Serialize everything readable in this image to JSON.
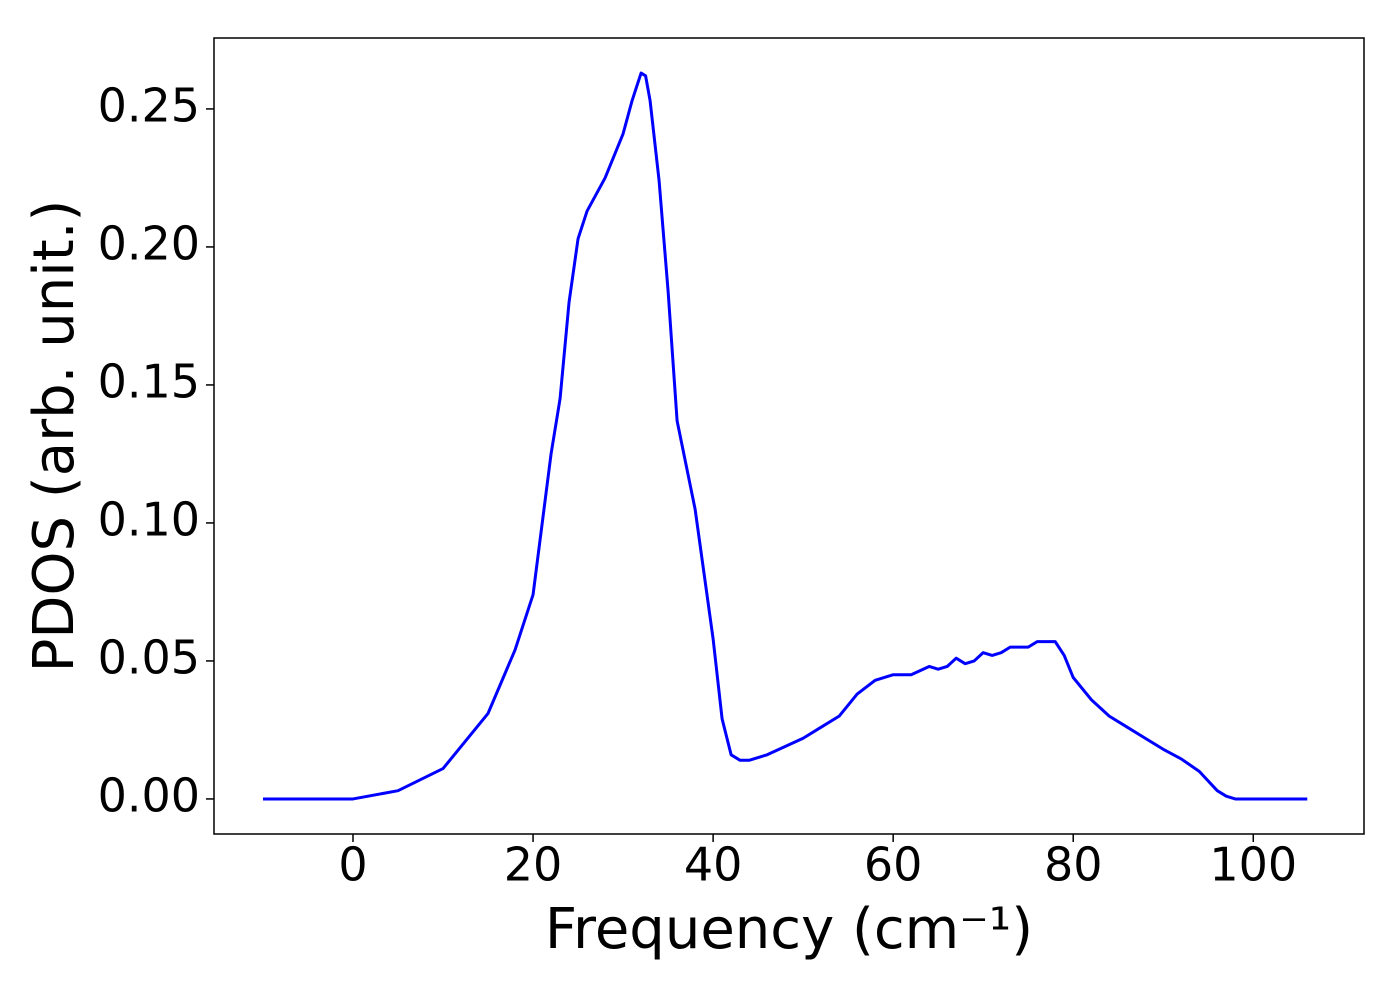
{
  "chart_data": {
    "type": "line",
    "xlabel": "Frequency (cm⁻¹)",
    "ylabel": "PDOS (arb. unit.)",
    "x": [
      -10,
      -5,
      0,
      5,
      10,
      15,
      18,
      20,
      22,
      23,
      24,
      25,
      26,
      28,
      30,
      31,
      32,
      32.5,
      33,
      34,
      35,
      36,
      38,
      40,
      41,
      42,
      43,
      44,
      46,
      48,
      50,
      52,
      54,
      56,
      58,
      60,
      62,
      64,
      65,
      66,
      67,
      68,
      69,
      70,
      71,
      72,
      73,
      75,
      76,
      78,
      79,
      80,
      82,
      84,
      86,
      88,
      90,
      92,
      94,
      96,
      97,
      98,
      100,
      103,
      106
    ],
    "series": [
      {
        "name": "PDOS",
        "color": "#0000ff",
        "values": [
          0,
          0,
          0,
          0.003,
          0.011,
          0.031,
          0.054,
          0.074,
          0.125,
          0.145,
          0.18,
          0.203,
          0.213,
          0.225,
          0.241,
          0.253,
          0.263,
          0.262,
          0.253,
          0.224,
          0.184,
          0.137,
          0.105,
          0.058,
          0.029,
          0.016,
          0.014,
          0.014,
          0.016,
          0.019,
          0.022,
          0.026,
          0.03,
          0.038,
          0.043,
          0.045,
          0.045,
          0.048,
          0.047,
          0.048,
          0.051,
          0.049,
          0.05,
          0.053,
          0.052,
          0.053,
          0.055,
          0.055,
          0.057,
          0.057,
          0.052,
          0.044,
          0.036,
          0.03,
          0.026,
          0.022,
          0.018,
          0.0145,
          0.01,
          0.003,
          0.001,
          0,
          0,
          0,
          0
        ]
      }
    ],
    "xlim": [
      -15.44,
      112.3
    ],
    "ylim": [
      -0.0127,
      0.2757
    ],
    "xticks": [
      0,
      20,
      40,
      60,
      80,
      100
    ],
    "yticks": [
      {
        "value": 0,
        "label": "0.00"
      },
      0.05,
      {
        "value": 0.1,
        "label": "0.10"
      },
      0.15,
      {
        "value": 0.2,
        "label": "0.20"
      },
      0.25
    ]
  }
}
